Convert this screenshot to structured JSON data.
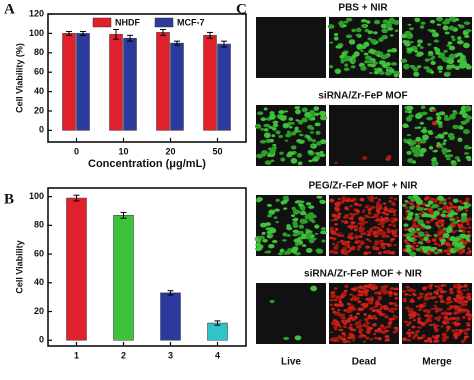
{
  "chart_data": [
    {
      "type": "bar",
      "panel_label": "A",
      "x_label": "Concentration (μg/mL)",
      "y_label": "Cell Viability (%)",
      "categories": [
        "0",
        "10",
        "20",
        "50"
      ],
      "series": [
        {
          "name": "NHDF",
          "color": "#e0202a",
          "values": [
            100,
            99,
            101,
            98
          ],
          "errors": [
            2,
            5,
            3,
            3
          ]
        },
        {
          "name": "MCF-7",
          "color": "#2b3a9c",
          "values": [
            100,
            95,
            90,
            89
          ],
          "errors": [
            2,
            3,
            2,
            3
          ]
        }
      ],
      "ylim": [
        -12,
        120
      ],
      "yticks": [
        0,
        20,
        40,
        60,
        80,
        100,
        120
      ],
      "legend": "top"
    },
    {
      "type": "bar",
      "panel_label": "B",
      "y_label": "Cell Viability",
      "categories": [
        "1",
        "2",
        "3",
        "4"
      ],
      "values": [
        99,
        87,
        33,
        12
      ],
      "errors": [
        2,
        2,
        1.5,
        1.5
      ],
      "colors": [
        "#e0202a",
        "#3cc23c",
        "#2b3a9c",
        "#2ec4c9"
      ],
      "ylim": [
        -4,
        106
      ],
      "yticks": [
        0,
        20,
        40,
        60,
        80,
        100
      ]
    }
  ],
  "panel_c": {
    "panel_label": "C",
    "rows": [
      "PBS + NIR",
      "siRNA/Zr-FeP MOF",
      "PEG/Zr-FeP MOF + NIR",
      "siRNA/Zr-FeP MOF + NIR"
    ],
    "columns": [
      "Live",
      "Dead",
      "Merge"
    ]
  }
}
